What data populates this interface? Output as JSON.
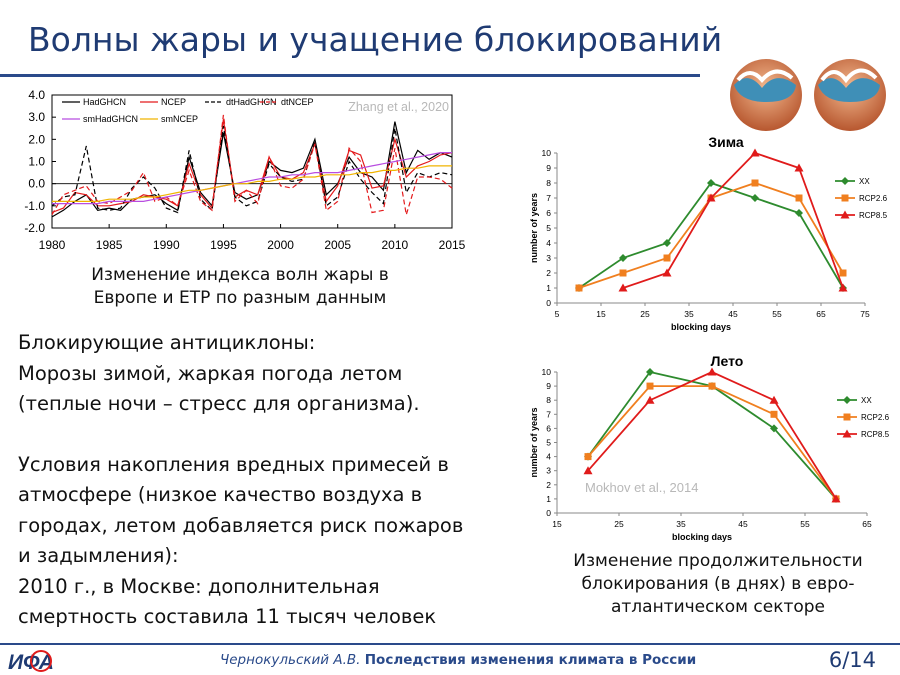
{
  "slide": {
    "title": "Волны жары и учащение блокирований",
    "caption_left": [
      "Изменение индекса волн жары в",
      "Европе и ЕТР по разным данным"
    ],
    "body": [
      "Блокирующие антициклоны:",
      "Морозы зимой, жаркая погода летом",
      "(теплые ночи – стресс для организма).",
      "",
      "Условия накопления вредных примесей в",
      "атмосфере (низкое качество воздуха в",
      "городах, летом добавляется риск пожаров",
      "и задымления):",
      "2010 г., в Москве: дополнительная",
      "смертность составила 11 тысяч человек"
    ],
    "caption_right": [
      "Изменение продолжительности",
      "блокирования (в днях) в евро-",
      "атлантическом секторе"
    ],
    "footer_author": "Чернокульский А.В.",
    "footer_title": "Последствия изменения климата в России",
    "page": "6/14",
    "logo_text": "ИФА",
    "colors": {
      "title": "#1f3b73",
      "accent": "#2a4a8a"
    }
  },
  "chart_data": [
    {
      "type": "line",
      "source": "Zhang et al., 2020",
      "xlim": [
        1980,
        2015
      ],
      "ylim": [
        -2.0,
        4.0
      ],
      "x_ticks": [
        1980,
        1985,
        1990,
        1995,
        2000,
        2005,
        2010,
        2015
      ],
      "y_ticks": [
        "4.0",
        "3.0",
        "2.0",
        "1.0",
        "0.0",
        "-1.0",
        "-2.0"
      ],
      "x": [
        1980,
        1981,
        1982,
        1983,
        1984,
        1985,
        1986,
        1987,
        1988,
        1989,
        1990,
        1991,
        1992,
        1993,
        1994,
        1995,
        1996,
        1997,
        1998,
        1999,
        2000,
        2001,
        2002,
        2003,
        2004,
        2005,
        2006,
        2007,
        2008,
        2009,
        2010,
        2011,
        2012,
        2013,
        2014,
        2015
      ],
      "series": [
        {
          "name": "HadGHCN",
          "color": "#000000",
          "dash": "solid",
          "values": [
            -1.5,
            -1.2,
            -0.8,
            -0.5,
            -1.2,
            -1.1,
            -1.2,
            -0.7,
            -0.6,
            -0.5,
            -0.9,
            -1.2,
            1.2,
            -0.4,
            -1.0,
            2.3,
            -0.4,
            -0.7,
            -0.5,
            1.0,
            0.6,
            0.5,
            0.7,
            2.0,
            -0.5,
            0.0,
            1.2,
            0.5,
            0.3,
            -0.3,
            2.8,
            0.5,
            1.5,
            1.1,
            1.4,
            1.2
          ]
        },
        {
          "name": "NCEP",
          "color": "#e41a1c",
          "dash": "solid",
          "values": [
            -1.3,
            -1.1,
            -0.4,
            -0.5,
            -1.0,
            -1.0,
            -0.9,
            -0.8,
            -0.5,
            -0.6,
            -0.7,
            -1.0,
            0.9,
            -0.5,
            -1.1,
            2.9,
            -0.6,
            -0.3,
            -0.5,
            1.2,
            0.3,
            0.2,
            0.5,
            1.8,
            -0.8,
            -0.1,
            1.5,
            1.3,
            -0.2,
            -0.1,
            2.0,
            0.3,
            0.8,
            1.0,
            1.3,
            1.4
          ]
        },
        {
          "name": "dtHadGHCN",
          "color": "#000000",
          "dash": "dash",
          "values": [
            -1.0,
            -0.6,
            -0.5,
            1.7,
            -1.1,
            -1.2,
            -1.1,
            -0.2,
            0.3,
            -0.2,
            -1.1,
            -1.3,
            1.5,
            -0.7,
            -1.2,
            2.6,
            -0.6,
            -1.0,
            -0.8,
            0.9,
            0.3,
            0.1,
            0.2,
            1.9,
            -1.0,
            -0.6,
            1.0,
            0.2,
            -0.4,
            -0.9,
            2.5,
            -0.4,
            0.5,
            0.3,
            0.5,
            0.4
          ]
        },
        {
          "name": "dtNCEP",
          "color": "#e41a1c",
          "dash": "dash",
          "values": [
            -1.4,
            -0.5,
            -0.3,
            -0.1,
            -0.8,
            -0.9,
            -0.6,
            -0.3,
            0.5,
            -0.8,
            -0.6,
            -1.0,
            0.6,
            -0.8,
            -1.2,
            3.1,
            -0.8,
            -0.3,
            -0.9,
            1.2,
            -0.1,
            -0.2,
            0.2,
            1.8,
            -1.2,
            -0.8,
            1.6,
            1.0,
            -1.3,
            -1.2,
            1.6,
            -1.4,
            0.3,
            0.3,
            0.2,
            -0.2
          ]
        },
        {
          "name": "smHadGHCN",
          "color": "#b84de0",
          "dash": "solid",
          "values": [
            -0.9,
            -0.9,
            -0.9,
            -0.9,
            -0.9,
            -0.8,
            -0.8,
            -0.8,
            -0.8,
            -0.7,
            -0.6,
            -0.5,
            -0.4,
            -0.3,
            -0.2,
            -0.1,
            0.0,
            0.1,
            0.2,
            0.3,
            0.3,
            0.4,
            0.4,
            0.5,
            0.5,
            0.5,
            0.6,
            0.7,
            0.8,
            0.9,
            1.0,
            1.1,
            1.2,
            1.3,
            1.4,
            1.4
          ]
        },
        {
          "name": "smNCEP",
          "color": "#f0b400",
          "dash": "solid",
          "values": [
            -0.8,
            -0.8,
            -0.8,
            -0.8,
            -0.8,
            -0.7,
            -0.7,
            -0.7,
            -0.6,
            -0.6,
            -0.5,
            -0.4,
            -0.3,
            -0.3,
            -0.2,
            -0.1,
            0.0,
            0.0,
            0.1,
            0.1,
            0.2,
            0.2,
            0.3,
            0.3,
            0.4,
            0.4,
            0.4,
            0.5,
            0.5,
            0.6,
            0.6,
            0.7,
            0.7,
            0.8,
            0.8,
            0.8
          ]
        }
      ]
    },
    {
      "type": "line",
      "title": "Зима",
      "xlabel": "blocking days",
      "ylabel": "number of years",
      "xlim": [
        5,
        75
      ],
      "ylim": [
        0,
        10
      ],
      "x_ticks": [
        5,
        15,
        25,
        35,
        45,
        55,
        65,
        75
      ],
      "y_ticks": [
        0,
        1,
        2,
        3,
        4,
        5,
        6,
        7,
        8,
        9,
        10
      ],
      "legend": "right",
      "series": [
        {
          "name": "XX",
          "color": "#2e8b2e",
          "marker": "diamond",
          "points": [
            [
              10,
              1
            ],
            [
              20,
              3
            ],
            [
              30,
              4
            ],
            [
              40,
              8
            ],
            [
              50,
              7
            ],
            [
              60,
              6
            ],
            [
              70,
              1
            ]
          ]
        },
        {
          "name": "RCP2.6",
          "color": "#f07f1f",
          "marker": "square",
          "points": [
            [
              10,
              1
            ],
            [
              20,
              2
            ],
            [
              30,
              3
            ],
            [
              40,
              7
            ],
            [
              50,
              8
            ],
            [
              60,
              7
            ],
            [
              70,
              2
            ]
          ]
        },
        {
          "name": "RCP8.5",
          "color": "#e01b1b",
          "marker": "triangle",
          "points": [
            [
              20,
              1
            ],
            [
              30,
              2
            ],
            [
              40,
              7
            ],
            [
              50,
              10
            ],
            [
              60,
              9
            ],
            [
              70,
              1
            ]
          ]
        }
      ]
    },
    {
      "type": "line",
      "title": "Лето",
      "source": "Mokhov et al., 2014",
      "xlabel": "blocking days",
      "ylabel": "number of years",
      "xlim": [
        15,
        65
      ],
      "ylim": [
        0,
        10
      ],
      "x_ticks": [
        15,
        25,
        35,
        45,
        55,
        65
      ],
      "y_ticks": [
        0,
        1,
        2,
        3,
        4,
        5,
        6,
        7,
        8,
        9,
        10
      ],
      "legend": "right",
      "series": [
        {
          "name": "XX",
          "color": "#2e8b2e",
          "marker": "diamond",
          "points": [
            [
              20,
              4
            ],
            [
              30,
              10
            ],
            [
              40,
              9
            ],
            [
              50,
              6
            ],
            [
              60,
              1
            ]
          ]
        },
        {
          "name": "RCP2.6",
          "color": "#f07f1f",
          "marker": "square",
          "points": [
            [
              20,
              4
            ],
            [
              30,
              9
            ],
            [
              40,
              9
            ],
            [
              50,
              7
            ],
            [
              60,
              1
            ]
          ]
        },
        {
          "name": "RCP8.5",
          "color": "#e01b1b",
          "marker": "triangle",
          "points": [
            [
              20,
              3
            ],
            [
              30,
              8
            ],
            [
              40,
              10
            ],
            [
              50,
              8
            ],
            [
              60,
              1
            ]
          ]
        }
      ]
    }
  ]
}
